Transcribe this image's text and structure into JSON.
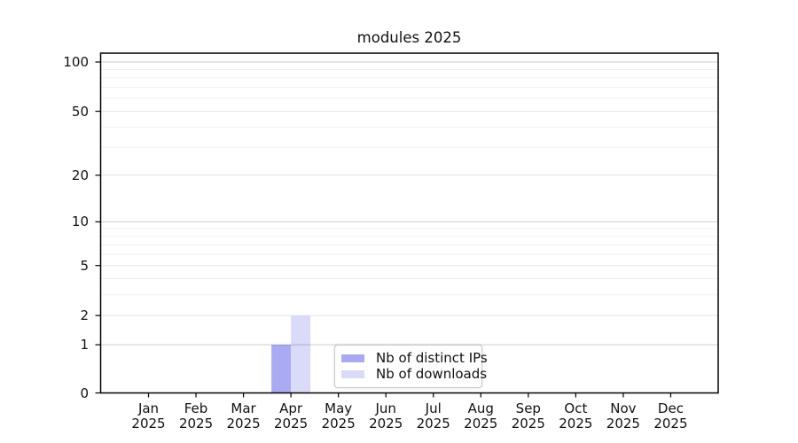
{
  "chart_data": {
    "type": "bar",
    "title": "modules 2025",
    "x": {
      "months": [
        "Jan",
        "Feb",
        "Mar",
        "Apr",
        "May",
        "Jun",
        "Jul",
        "Aug",
        "Sep",
        "Oct",
        "Nov",
        "Dec"
      ],
      "year": "2025"
    },
    "y_axis": {
      "scale": "symlog",
      "labeled_ticks": [
        100,
        50,
        20,
        10,
        5,
        2,
        1,
        0
      ],
      "decade_ticks": [
        1,
        10,
        100
      ],
      "minor_ticks": [
        3,
        4,
        6,
        7,
        8,
        9,
        30,
        40,
        60,
        70,
        80,
        90
      ],
      "ylim": [
        0,
        113
      ]
    },
    "series": [
      {
        "name": "Nb of distinct IPs",
        "color": "#aaaaf2",
        "values": [
          0,
          0,
          0,
          1,
          0,
          0,
          0,
          0,
          0,
          0,
          0,
          0
        ]
      },
      {
        "name": "Nb of downloads",
        "color": "#dadaf9",
        "values": [
          0,
          0,
          0,
          2,
          0,
          0,
          0,
          0,
          0,
          0,
          0,
          0
        ]
      }
    ],
    "legend": {
      "position": "bottom-center",
      "entries": [
        "Nb of distinct IPs",
        "Nb of downloads"
      ]
    }
  },
  "colors": {
    "axis": "#000000",
    "grid_decade": "rgba(0,0,0,0.20)",
    "grid_major": "#e4e4e4",
    "grid_minor": "#f0f0f0",
    "text": "#111111",
    "background": "#ffffff"
  }
}
